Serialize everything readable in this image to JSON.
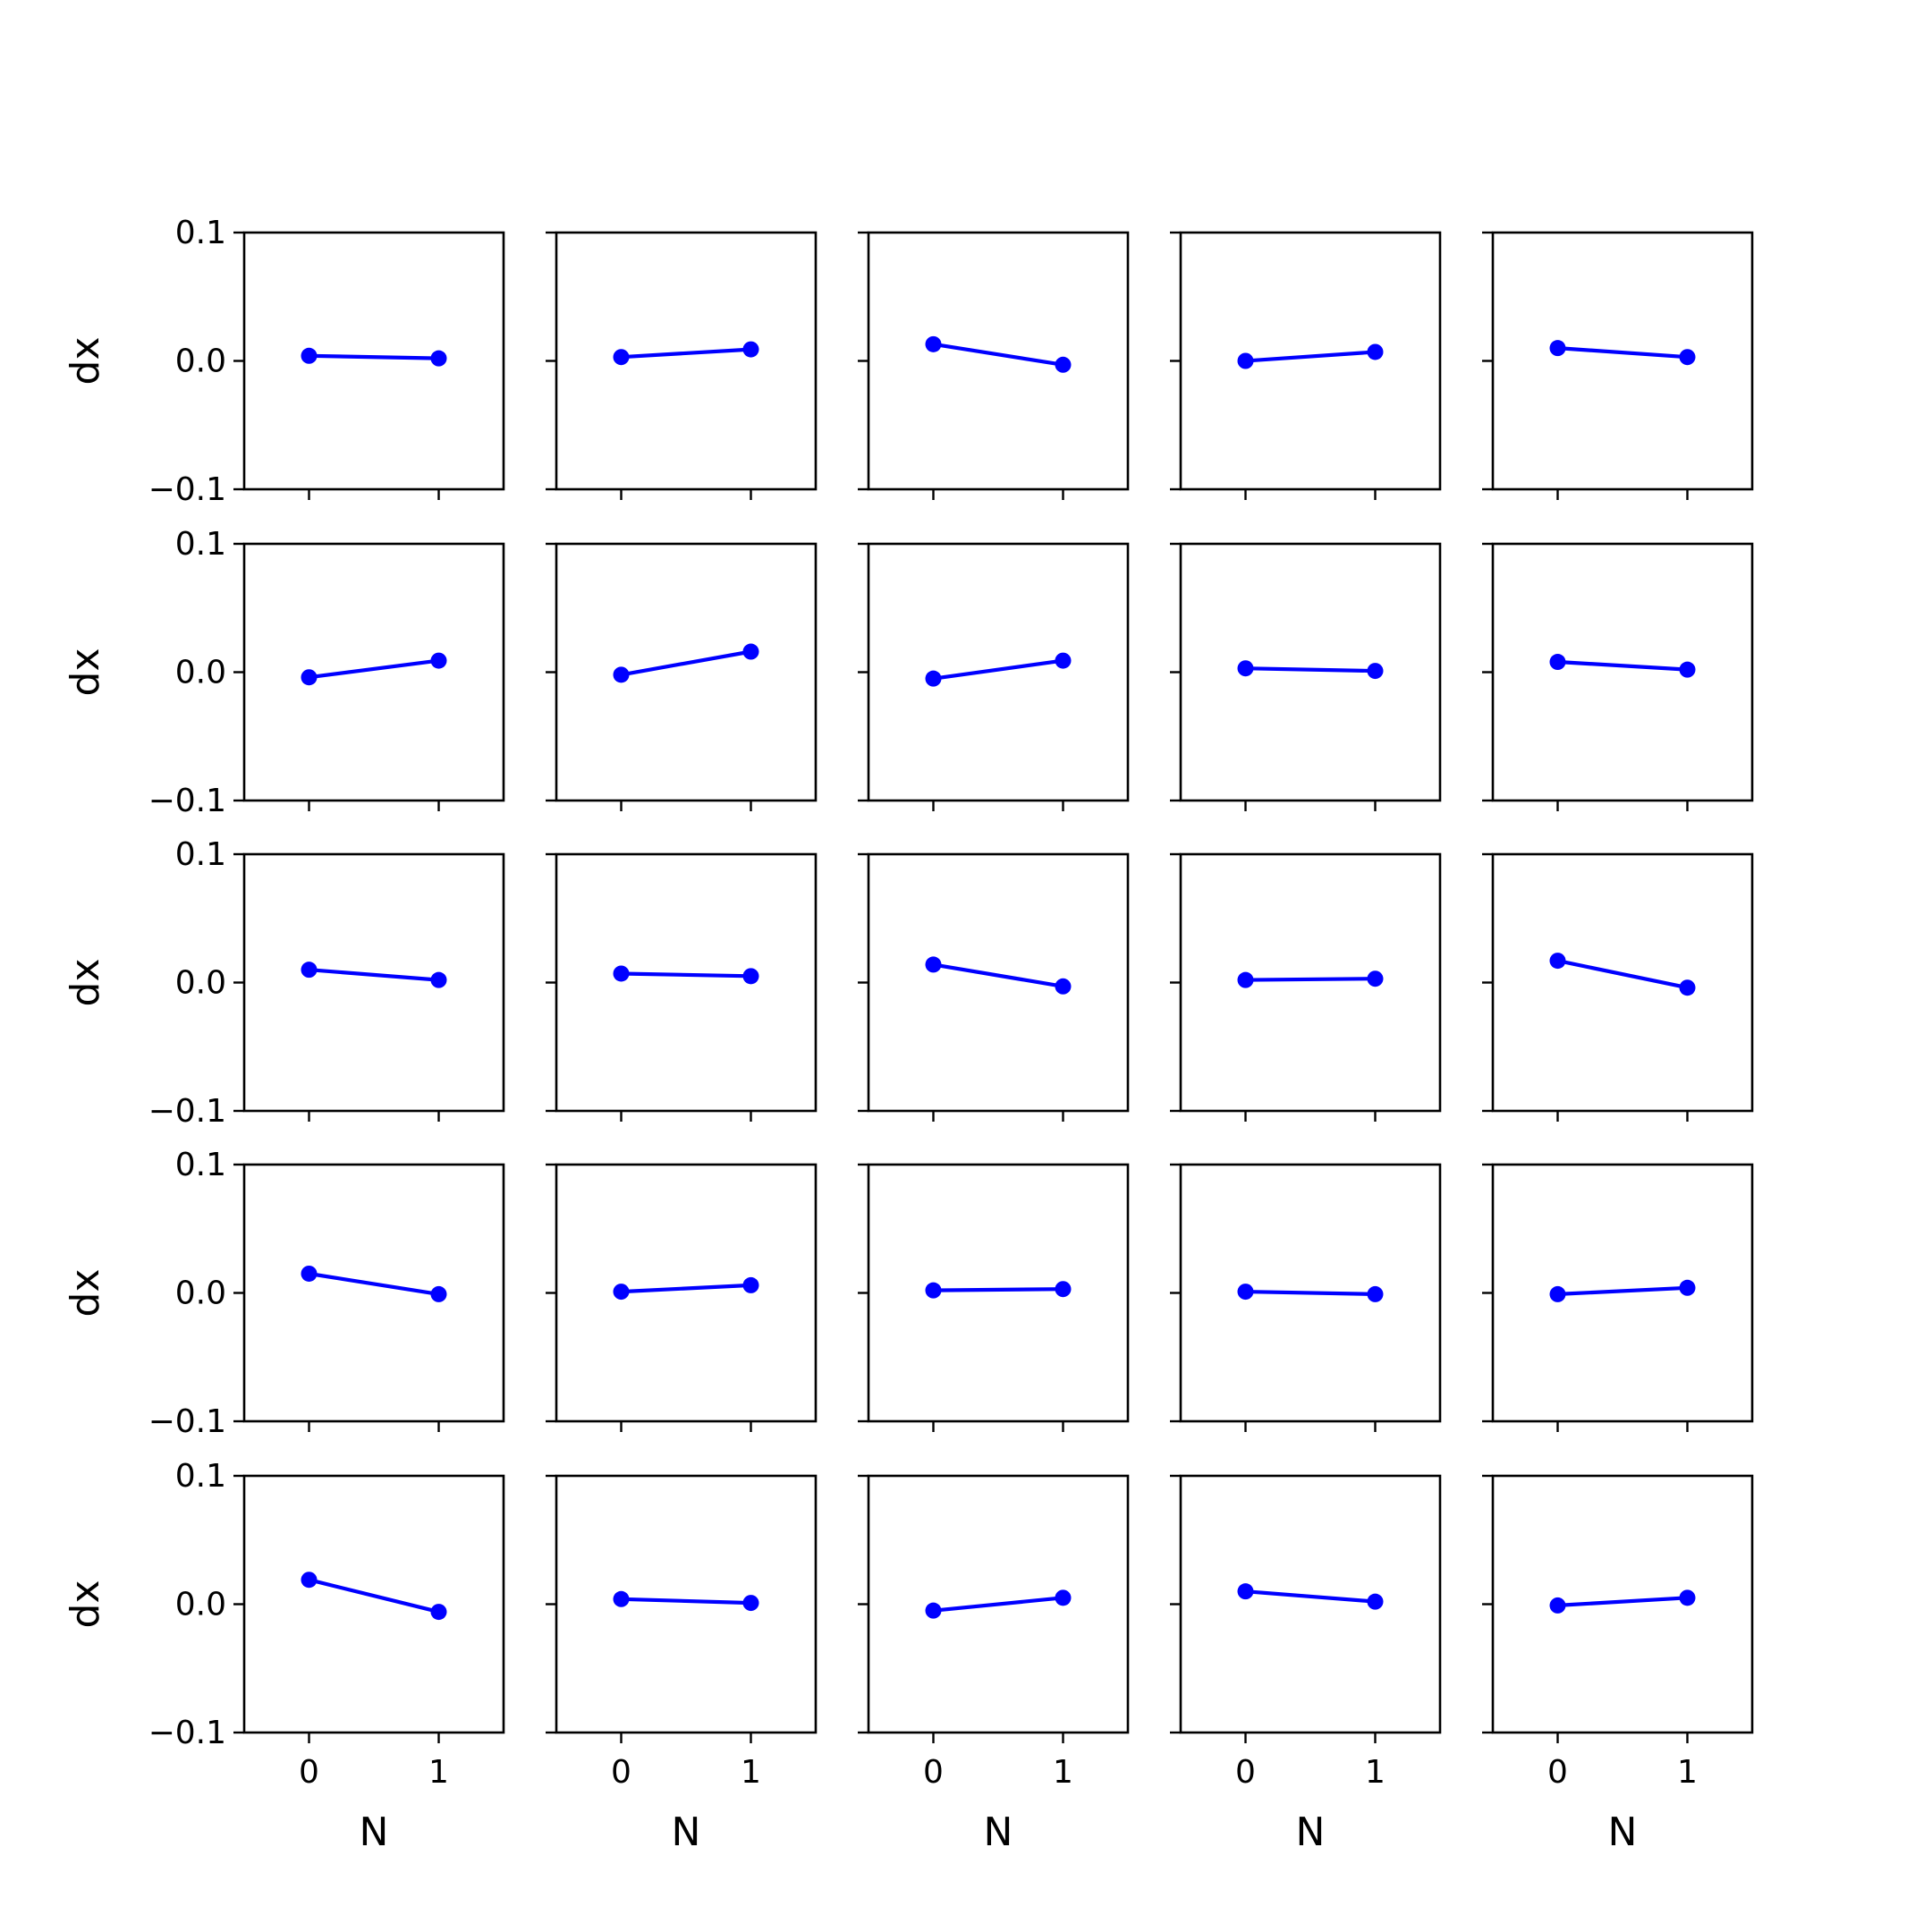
{
  "figure": {
    "rows": 5,
    "cols": 5,
    "line_color": "#0000ff",
    "axis_color": "#000000",
    "background": "#ffffff"
  },
  "axes": {
    "xlabel": "N",
    "ylabel": "dx",
    "xlim": [
      -0.5,
      1.5
    ],
    "ylim": [
      -0.1,
      0.1
    ],
    "xticks": [
      0,
      1
    ],
    "xtick_labels": [
      "0",
      "1"
    ],
    "yticks": [
      0.1,
      0.0,
      -0.1
    ],
    "ytick_labels": [
      "0.1",
      "0.0",
      "−0.1"
    ]
  },
  "chart_data": {
    "type": "line",
    "grid": false,
    "legend": false,
    "x": [
      0,
      1
    ],
    "xlabel": "N",
    "ylabel": "dx",
    "xlim": [
      -0.5,
      1.5
    ],
    "ylim": [
      -0.1,
      0.1
    ],
    "panels": [
      [
        {
          "values": [
            0.004,
            0.002
          ]
        },
        {
          "values": [
            0.003,
            0.009
          ]
        },
        {
          "values": [
            0.013,
            -0.003
          ]
        },
        {
          "values": [
            0.0,
            0.007
          ]
        },
        {
          "values": [
            0.01,
            0.003
          ]
        }
      ],
      [
        {
          "values": [
            -0.004,
            0.009
          ]
        },
        {
          "values": [
            -0.002,
            0.016
          ]
        },
        {
          "values": [
            -0.005,
            0.009
          ]
        },
        {
          "values": [
            0.003,
            0.001
          ]
        },
        {
          "values": [
            0.008,
            0.002
          ]
        }
      ],
      [
        {
          "values": [
            0.01,
            0.002
          ]
        },
        {
          "values": [
            0.007,
            0.005
          ]
        },
        {
          "values": [
            0.014,
            -0.003
          ]
        },
        {
          "values": [
            0.002,
            0.003
          ]
        },
        {
          "values": [
            0.017,
            -0.004
          ]
        }
      ],
      [
        {
          "values": [
            0.015,
            -0.001
          ]
        },
        {
          "values": [
            0.001,
            0.006
          ]
        },
        {
          "values": [
            0.002,
            0.003
          ]
        },
        {
          "values": [
            0.001,
            -0.001
          ]
        },
        {
          "values": [
            -0.001,
            0.004
          ]
        }
      ],
      [
        {
          "values": [
            0.019,
            -0.006
          ]
        },
        {
          "values": [
            0.004,
            0.001
          ]
        },
        {
          "values": [
            -0.005,
            0.005
          ]
        },
        {
          "values": [
            0.01,
            0.002
          ]
        },
        {
          "values": [
            -0.001,
            0.005
          ]
        }
      ]
    ]
  }
}
